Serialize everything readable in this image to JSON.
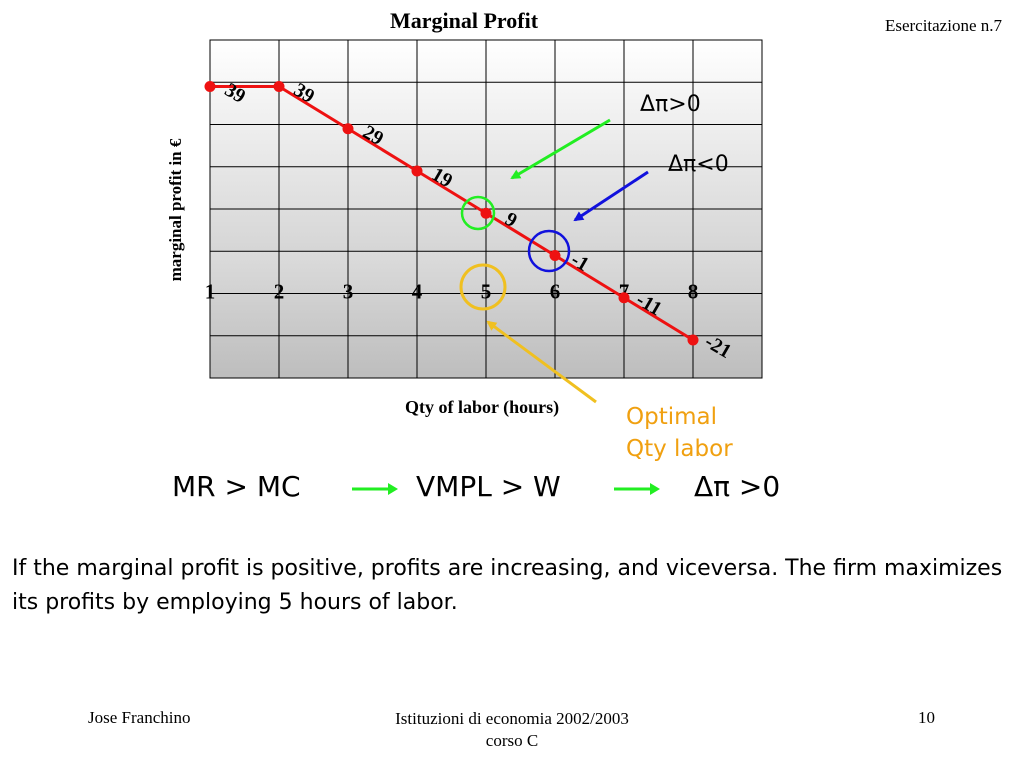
{
  "header": {
    "exercise": "Esercitazione n.7"
  },
  "chart_data": {
    "type": "line",
    "title": "Marginal Profit",
    "xlabel": "Qty of labor (hours)",
    "ylabel": "marginal profit in €",
    "x": [
      1,
      2,
      3,
      4,
      5,
      6,
      7,
      8
    ],
    "values": [
      39,
      39,
      29,
      19,
      9,
      -1,
      -11,
      -21
    ],
    "ylim": [
      -30,
      50
    ],
    "grid": true,
    "series_color": "#ee1111"
  },
  "annotations": {
    "delta_positive": "Δπ>0",
    "delta_negative": "Δπ<0",
    "optimal_line1": "Optimal",
    "optimal_line2": "Qty labor"
  },
  "rule": {
    "part1": "MR > MC",
    "part2": "VMPL > W",
    "part3": "Δπ >0"
  },
  "explanation": "If the marginal profit is positive, profits are increasing, and viceversa. The firm maximizes its profits by employing 5 hours of labor.",
  "footer": {
    "author": "Jose Franchino",
    "course_line1": "Istituzioni di economia 2002/2003",
    "course_line2": "corso C",
    "page": "10"
  }
}
